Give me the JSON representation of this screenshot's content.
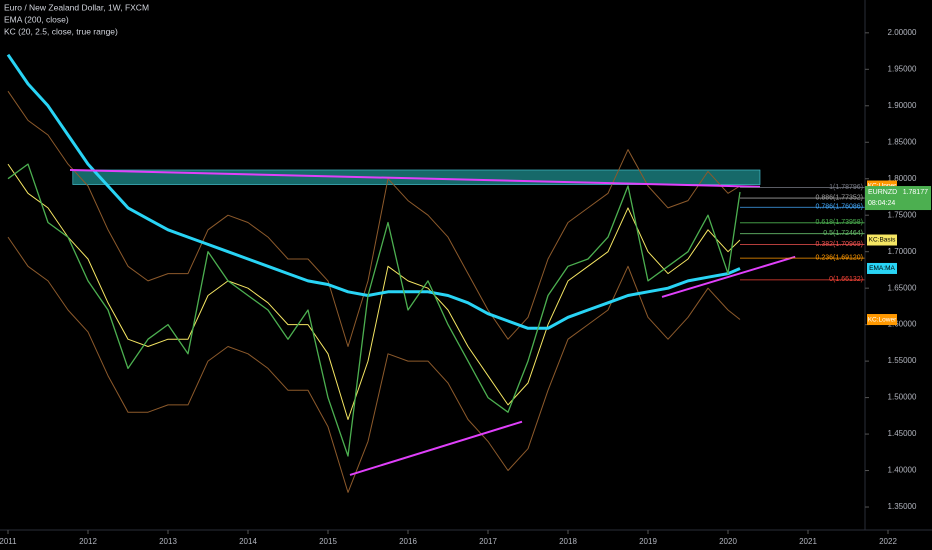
{
  "chart_data": {
    "type": "line",
    "title": "Euro / New Zealand Dollar, 1W, FXCM",
    "indicators": [
      "EMA (200, close)",
      "KC (20, 2.5, close, true range)"
    ],
    "countdown": "08:04:24",
    "xlim": [
      2010.9,
      2022.55
    ],
    "xticks": [
      2011,
      2012,
      2013,
      2014,
      2015,
      2016,
      2017,
      2018,
      2019,
      2020,
      2021,
      2022
    ],
    "ylim": [
      1.3185,
      2.045
    ],
    "yticks": [
      {
        "value": 1.35,
        "label": "1.35000"
      },
      {
        "value": 1.4,
        "label": "1.40000"
      },
      {
        "value": 1.45,
        "label": "1.45000"
      },
      {
        "value": 1.5,
        "label": "1.50000"
      },
      {
        "value": 1.55,
        "label": "1.55000"
      },
      {
        "value": 1.6,
        "label": "1.60000"
      },
      {
        "value": 1.65,
        "label": "1.65000"
      },
      {
        "value": 1.7,
        "label": "1.70000"
      },
      {
        "value": 1.75,
        "label": "1.75000"
      },
      {
        "value": 1.8,
        "label": "1.80000"
      },
      {
        "value": 1.85,
        "label": "1.85000"
      },
      {
        "value": 1.9,
        "label": "1.90000"
      },
      {
        "value": 1.95,
        "label": "1.95000"
      },
      {
        "value": 2.0,
        "label": "2.00000"
      }
    ],
    "x": [
      2011,
      2011.25,
      2011.5,
      2011.75,
      2012,
      2012.25,
      2012.5,
      2012.75,
      2013,
      2013.25,
      2013.5,
      2013.75,
      2014,
      2014.25,
      2014.5,
      2014.75,
      2015,
      2015.25,
      2015.5,
      2015.75,
      2016,
      2016.25,
      2016.5,
      2016.75,
      2017,
      2017.25,
      2017.5,
      2017.75,
      2018,
      2018.25,
      2018.5,
      2018.75,
      2019,
      2019.25,
      2019.5,
      2019.75,
      2020,
      2020.15
    ],
    "series": [
      {
        "name": "KC:Upper",
        "color": "#8d5a2b",
        "tag": "#ff9800",
        "width": 1,
        "values": [
          1.92,
          1.88,
          1.86,
          1.82,
          1.79,
          1.73,
          1.68,
          1.66,
          1.67,
          1.67,
          1.73,
          1.75,
          1.74,
          1.72,
          1.69,
          1.69,
          1.66,
          1.57,
          1.66,
          1.8,
          1.77,
          1.75,
          1.72,
          1.67,
          1.62,
          1.58,
          1.61,
          1.69,
          1.74,
          1.76,
          1.78,
          1.84,
          1.79,
          1.76,
          1.77,
          1.81,
          1.78,
          1.79
        ]
      },
      {
        "name": "KC:Lower",
        "color": "#8d5a2b",
        "tag": "#ff9800",
        "width": 1,
        "values": [
          1.72,
          1.68,
          1.66,
          1.62,
          1.59,
          1.53,
          1.48,
          1.48,
          1.49,
          1.49,
          1.55,
          1.57,
          1.56,
          1.54,
          1.51,
          1.51,
          1.46,
          1.37,
          1.44,
          1.56,
          1.55,
          1.55,
          1.52,
          1.47,
          1.44,
          1.4,
          1.43,
          1.51,
          1.58,
          1.6,
          1.62,
          1.68,
          1.61,
          1.58,
          1.61,
          1.65,
          1.62,
          1.607
        ]
      },
      {
        "name": "KC:Basis",
        "color": "#f5e663",
        "tag": "#f5e663",
        "width": 1,
        "values": [
          1.82,
          1.78,
          1.76,
          1.72,
          1.69,
          1.63,
          1.58,
          1.57,
          1.58,
          1.58,
          1.64,
          1.66,
          1.65,
          1.63,
          1.6,
          1.6,
          1.56,
          1.47,
          1.55,
          1.68,
          1.66,
          1.65,
          1.62,
          1.57,
          1.53,
          1.49,
          1.52,
          1.6,
          1.66,
          1.68,
          1.7,
          1.76,
          1.7,
          1.67,
          1.69,
          1.73,
          1.7,
          1.716
        ]
      },
      {
        "name": "EMA:MA",
        "color": "#29d4f5",
        "tag": "#29d4f5",
        "width": 3,
        "values": [
          1.97,
          1.93,
          1.9,
          1.86,
          1.82,
          1.79,
          1.76,
          1.745,
          1.73,
          1.72,
          1.71,
          1.7,
          1.69,
          1.68,
          1.67,
          1.66,
          1.655,
          1.645,
          1.64,
          1.645,
          1.645,
          1.645,
          1.64,
          1.63,
          1.615,
          1.605,
          1.595,
          1.595,
          1.61,
          1.62,
          1.63,
          1.64,
          1.645,
          1.65,
          1.66,
          1.665,
          1.67,
          1.677
        ]
      },
      {
        "name": "EURNZD",
        "color": "#4caf50",
        "tag": "#4caf50",
        "width": 1.3,
        "values": [
          1.8,
          1.82,
          1.74,
          1.72,
          1.66,
          1.62,
          1.54,
          1.58,
          1.6,
          1.56,
          1.7,
          1.66,
          1.64,
          1.62,
          1.58,
          1.62,
          1.5,
          1.42,
          1.64,
          1.74,
          1.62,
          1.66,
          1.6,
          1.55,
          1.5,
          1.48,
          1.55,
          1.64,
          1.68,
          1.69,
          1.72,
          1.79,
          1.66,
          1.68,
          1.7,
          1.75,
          1.67,
          1.78177
        ]
      }
    ],
    "fib_start": 2020.15,
    "fib_levels": [
      {
        "value": 1.78796,
        "label": "1(1.78796)",
        "color": "#787b86"
      },
      {
        "value": 1.77352,
        "label": "0.886(1.77352)",
        "color": "#9e9e9e"
      },
      {
        "value": 1.76086,
        "label": "0.786(1.76086)",
        "color": "#42a5f5"
      },
      {
        "value": 1.73958,
        "label": "0.618(1.73958)",
        "color": "#4caf50"
      },
      {
        "value": 1.72464,
        "label": "0.5(1.72464)",
        "color": "#66bb6a"
      },
      {
        "value": 1.70969,
        "label": "0.382(1.70969)",
        "color": "#ef5350"
      },
      {
        "value": 1.6912,
        "label": "0.236(1.69120)",
        "color": "#ff9800"
      },
      {
        "value": 1.66132,
        "label": "0(1.66132)",
        "color": "#f44336"
      }
    ],
    "zone": {
      "x": [
        2011.81,
        2020.4
      ],
      "y": [
        1.812,
        1.792
      ],
      "color": "#1e8c8c"
    },
    "trendlines": [
      {
        "x": [
          2011.775,
          2020.4
        ],
        "y": [
          1.812,
          1.789
        ],
        "color": "#e040fb"
      },
      {
        "x": [
          2015.275,
          2017.425
        ],
        "y": [
          1.394,
          1.467
        ],
        "color": "#e040fb"
      },
      {
        "x": [
          2019.175,
          2020.84
        ],
        "y": [
          1.638,
          1.693
        ],
        "color": "#e040fb"
      }
    ]
  }
}
